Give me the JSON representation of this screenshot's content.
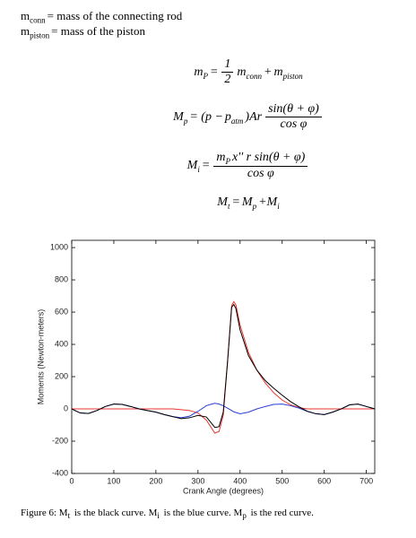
{
  "definitions": [
    [
      {
        "text": "m",
        "sub": "conn"
      },
      {
        "text": "= mass of the connecting rod"
      }
    ],
    [
      {
        "text": "m",
        "sub": "piston"
      },
      {
        "text": "= mass of the piston"
      }
    ]
  ],
  "equations": [
    [
      {
        "text": "m",
        "sub": "P"
      },
      {
        "text": "="
      },
      {
        "num": [
          {
            "text": "1"
          }
        ],
        "den": [
          {
            "text": "2"
          }
        ]
      },
      {
        "text": "m",
        "sub": "conn"
      },
      {
        "text": "+"
      },
      {
        "text": "m",
        "sub": "piston"
      }
    ],
    [
      {
        "text": "M",
        "sub": "p"
      },
      {
        "text": "= (p −"
      },
      {
        "text": "p",
        "sub": "atm"
      },
      {
        "text": ")Ar"
      },
      {
        "num": [
          {
            "text": "sin(θ + φ)"
          }
        ],
        "den": [
          {
            "text": "cos φ"
          }
        ]
      }
    ],
    [
      {
        "text": "M",
        "sub": "i"
      },
      {
        "text": "="
      },
      {
        "num": [
          {
            "text": "m",
            "sub": "P"
          },
          {
            "text": "x'' r sin(θ + φ)"
          }
        ],
        "den": [
          {
            "text": "cos φ"
          }
        ]
      }
    ],
    [
      {
        "text": "M",
        "sub": "t"
      },
      {
        "text": "="
      },
      {
        "text": "M",
        "sub": "p"
      },
      {
        "text": "+M",
        "sub": "i"
      }
    ]
  ],
  "chart_data": {
    "type": "line",
    "xlabel": "Crank Angle (degrees)",
    "ylabel": "Moments (Newton-meters)",
    "x": [
      0,
      20,
      40,
      60,
      80,
      100,
      120,
      140,
      160,
      180,
      200,
      220,
      240,
      260,
      280,
      300,
      320,
      330,
      340,
      350,
      360,
      370,
      380,
      385,
      390,
      400,
      420,
      440,
      460,
      480,
      500,
      520,
      540,
      560,
      580,
      600,
      620,
      640,
      660,
      680,
      700,
      720
    ],
    "series": [
      {
        "color": "#e8372c",
        "values": [
          0,
          0,
          0,
          0,
          0,
          0,
          0,
          0,
          0,
          0,
          0,
          0,
          0,
          -5,
          -10,
          -25,
          -70,
          -110,
          -150,
          -140,
          -40,
          280,
          640,
          665,
          645,
          520,
          350,
          240,
          160,
          100,
          55,
          25,
          8,
          0,
          0,
          0,
          0,
          0,
          0,
          0,
          0,
          0
        ]
      },
      {
        "color": "#2a3fd6",
        "values": [
          0,
          -25,
          -28,
          -10,
          15,
          30,
          28,
          15,
          0,
          -10,
          -20,
          -35,
          -48,
          -55,
          -45,
          -15,
          20,
          28,
          35,
          30,
          20,
          5,
          -10,
          -18,
          -22,
          -30,
          -20,
          0,
          15,
          28,
          30,
          20,
          5,
          -15,
          -30,
          -35,
          -20,
          0,
          25,
          30,
          15,
          0
        ]
      },
      {
        "color": "#000000",
        "values": [
          0,
          -25,
          -28,
          -10,
          15,
          30,
          28,
          15,
          0,
          -10,
          -20,
          -35,
          -48,
          -60,
          -55,
          -40,
          -50,
          -82,
          -115,
          -110,
          -20,
          285,
          630,
          647,
          623,
          490,
          330,
          240,
          175,
          128,
          85,
          45,
          13,
          -15,
          -30,
          -35,
          -20,
          0,
          25,
          30,
          15,
          0
        ]
      }
    ],
    "xlim": [
      0,
      720
    ],
    "ylim": [
      -400,
      1045
    ],
    "xticks": [
      0,
      100,
      200,
      300,
      400,
      500,
      600,
      700
    ],
    "yticks": [
      -400,
      -200,
      0,
      200,
      400,
      600,
      800,
      1000
    ]
  },
  "caption": [
    {
      "text": "Figure 6: M",
      "sub": "t"
    },
    {
      "text": " is the black curve.  M",
      "sub": "i"
    },
    {
      "text": " is the blue curve. M",
      "sub": "p"
    },
    {
      "text": " is the red curve."
    }
  ]
}
